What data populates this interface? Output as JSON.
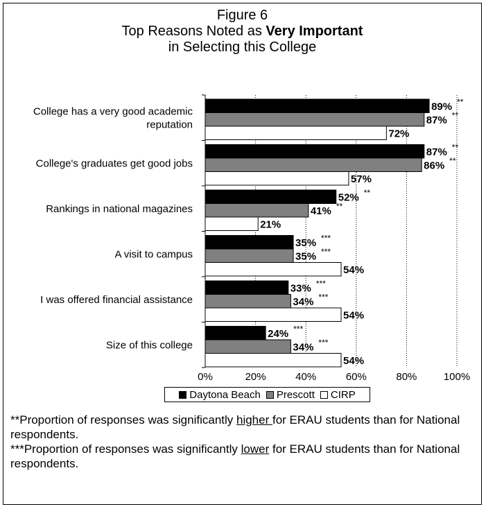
{
  "title": {
    "line1": "Figure 6",
    "line2_prefix": "Top Reasons Noted as ",
    "line2_bold": "Very Important",
    "line3": "in Selecting this College"
  },
  "chart_data": {
    "type": "bar",
    "orientation": "horizontal",
    "categories": [
      "College has a very good academic reputation",
      "College's graduates get good jobs",
      "Rankings in national magazines",
      "A visit to campus",
      "I was offered financial assistance",
      "Size of this college"
    ],
    "category_lines": [
      [
        "College has a very good academic",
        "reputation"
      ],
      [
        "College's graduates get good jobs"
      ],
      [
        "Rankings in national magazines"
      ],
      [
        "A visit to campus"
      ],
      [
        "I was offered financial assistance"
      ],
      [
        "Size of this college"
      ]
    ],
    "series": [
      {
        "name": "Daytona Beach",
        "color": "#000000",
        "values": [
          89,
          87,
          52,
          35,
          33,
          24
        ],
        "labels": [
          "89%",
          "87%",
          "52%",
          "35%",
          "33%",
          "24%"
        ],
        "sig": [
          "**",
          "**",
          "**",
          "***",
          "***",
          "***"
        ]
      },
      {
        "name": "Prescott",
        "color": "#808080",
        "values": [
          87,
          86,
          41,
          35,
          34,
          34
        ],
        "labels": [
          "87%",
          "86%",
          "41%",
          "35%",
          "34%",
          "34%"
        ],
        "sig": [
          "**",
          "**",
          "**",
          "***",
          "***",
          "***"
        ]
      },
      {
        "name": "CIRP",
        "color": "#ffffff",
        "values": [
          72,
          57,
          21,
          54,
          54,
          54
        ],
        "labels": [
          "72%",
          "57%",
          "21%",
          "54%",
          "54%",
          "54%"
        ],
        "sig": [
          "",
          "",
          "",
          "",
          "",
          ""
        ]
      }
    ],
    "xlim": [
      0,
      100
    ],
    "xticks": [
      0,
      20,
      40,
      60,
      80,
      100
    ],
    "xtick_labels": [
      "0%",
      "20%",
      "40%",
      "60%",
      "80%",
      "100%"
    ],
    "grid": "vertical dotted",
    "legend": "bottom"
  },
  "notes": {
    "note1_prefix": "**Proportion of responses was significantly ",
    "note1_emph": "higher ",
    "note1_suffix": "for ERAU students than for National respondents.",
    "note2_prefix": "***Proportion of responses was significantly ",
    "note2_emph": "lower",
    "note2_suffix": " for ERAU students than for National respondents."
  }
}
